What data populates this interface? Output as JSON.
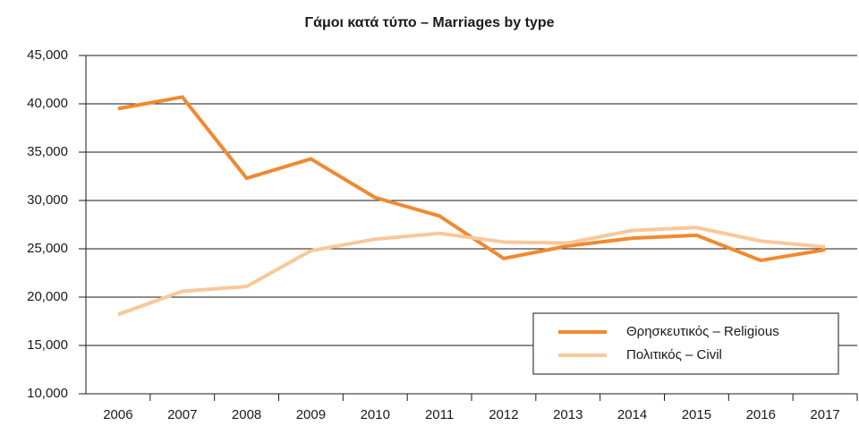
{
  "chart_data": {
    "type": "line",
    "title": "Γάμοι κατά τύπο – Marriages by type",
    "categories": [
      "2006",
      "2007",
      "2008",
      "2009",
      "2010",
      "2011",
      "2012",
      "2013",
      "2014",
      "2015",
      "2016",
      "2017"
    ],
    "series": [
      {
        "name": "Θρησκευτικός – Religious",
        "color": "#f08a2e",
        "values": [
          39500,
          40700,
          32300,
          34300,
          30300,
          28400,
          24000,
          25300,
          26100,
          26400,
          23800,
          24900
        ]
      },
      {
        "name": "Πολιτικός – Civil",
        "color": "#f8c89a",
        "values": [
          18200,
          20600,
          21100,
          24800,
          26000,
          26600,
          25700,
          25600,
          26900,
          27200,
          25800,
          25200
        ]
      }
    ],
    "ylim": [
      10000,
      45000
    ],
    "yticks": [
      {
        "value": 10000,
        "label": "10,000"
      },
      {
        "value": 15000,
        "label": "15,000"
      },
      {
        "value": 20000,
        "label": "20,000"
      },
      {
        "value": 25000,
        "label": "25,000"
      },
      {
        "value": 30000,
        "label": "30,000"
      },
      {
        "value": 35000,
        "label": "35,000"
      },
      {
        "value": 40000,
        "label": "40,000"
      },
      {
        "value": 45000,
        "label": "45,000"
      }
    ],
    "grid": true,
    "legend": "lower right"
  }
}
